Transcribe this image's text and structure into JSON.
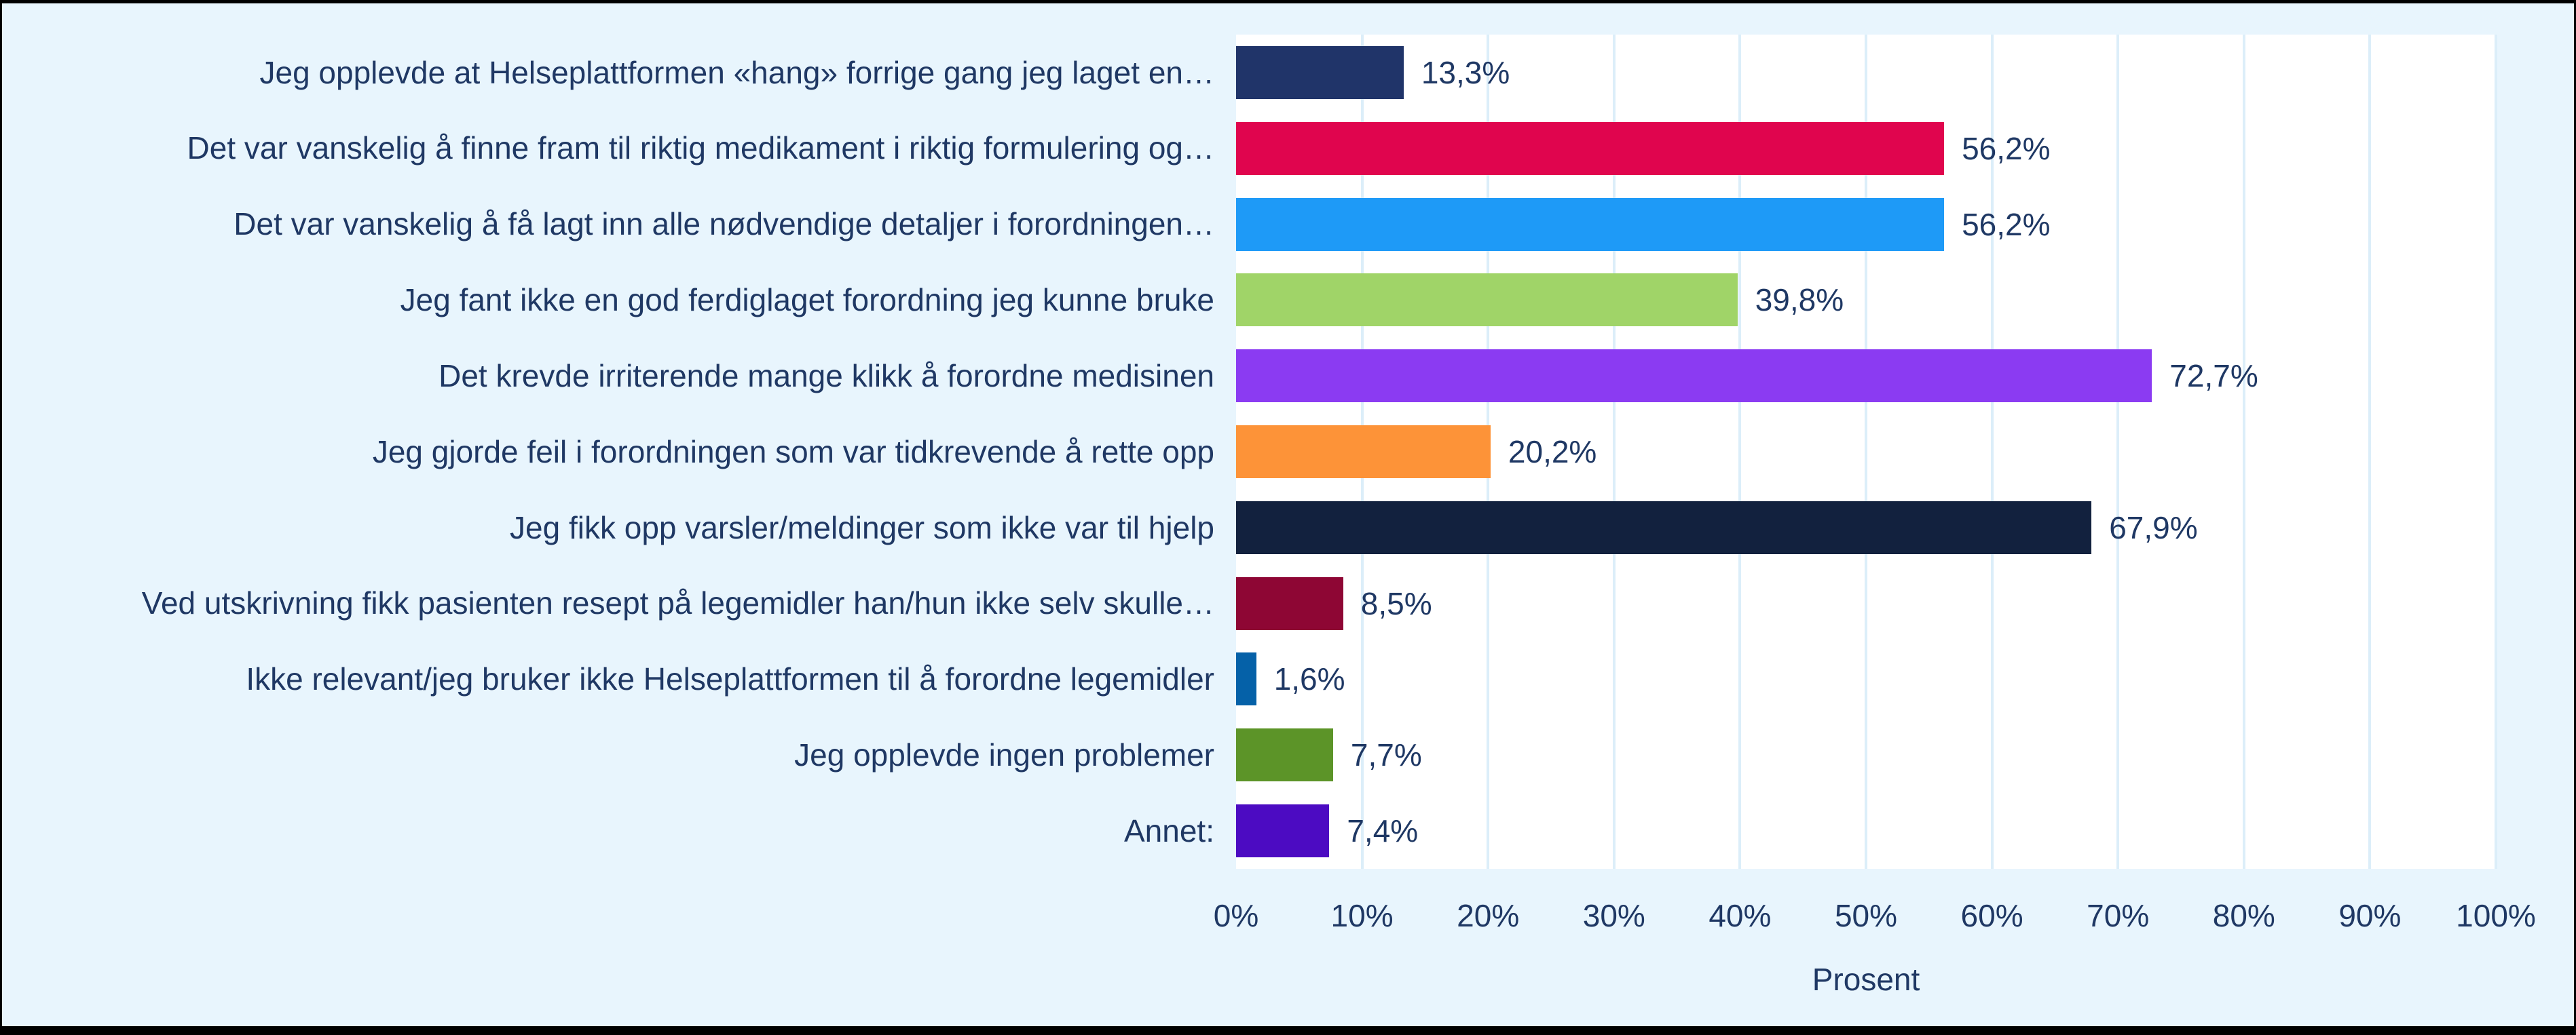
{
  "style": {
    "background": "#e8f5fd",
    "plot_background": "#ffffff",
    "text_color": "#1f3864",
    "gridline_color": "#dceef9",
    "frame_border_color": "#000000"
  },
  "chart_data": {
    "type": "bar",
    "orientation": "horizontal",
    "title": "",
    "xlabel": "Prosent",
    "ylabel": "",
    "xlim": [
      0,
      100
    ],
    "grid": true,
    "legend": false,
    "categories": [
      "Jeg opplevde at Helseplattformen «hang» forrige gang jeg laget en…",
      "Det var vanskelig å finne fram til riktig medikament i riktig formulering og…",
      "Det var vanskelig å få lagt inn alle nødvendige detaljer i forordningen…",
      "Jeg fant ikke en god ferdiglaget forordning jeg kunne bruke",
      "Det krevde irriterende mange klikk å forordne medisinen",
      "Jeg gjorde feil i forordningen som var tidkrevende å rette opp",
      "Jeg fikk opp varsler/meldinger som ikke var til hjelp",
      "Ved utskrivning fikk pasienten resept på legemidler han/hun ikke selv skulle…",
      "Ikke relevant/jeg bruker ikke Helseplattformen til å forordne legemidler",
      "Jeg opplevde ingen problemer",
      "Annet:"
    ],
    "values": [
      13.3,
      56.2,
      56.2,
      39.8,
      72.7,
      20.2,
      67.9,
      8.5,
      1.6,
      7.7,
      7.4
    ],
    "value_labels": [
      "13,3%",
      "56,2%",
      "56,2%",
      "39,8%",
      "72,7%",
      "20,2%",
      "67,9%",
      "8,5%",
      "1,6%",
      "7,7%",
      "7,4%"
    ],
    "bar_colors": [
      "#203469",
      "#e0054e",
      "#1e9af7",
      "#a0d468",
      "#8b3bf2",
      "#fd9338",
      "#12213e",
      "#8e0634",
      "#0561a8",
      "#5c9428",
      "#4c0bc2"
    ],
    "x_ticks": [
      "0%",
      "10%",
      "20%",
      "30%",
      "40%",
      "50%",
      "60%",
      "70%",
      "80%",
      "90%",
      "100%"
    ],
    "x_tick_values": [
      0,
      10,
      20,
      30,
      40,
      50,
      60,
      70,
      80,
      90,
      100
    ]
  }
}
